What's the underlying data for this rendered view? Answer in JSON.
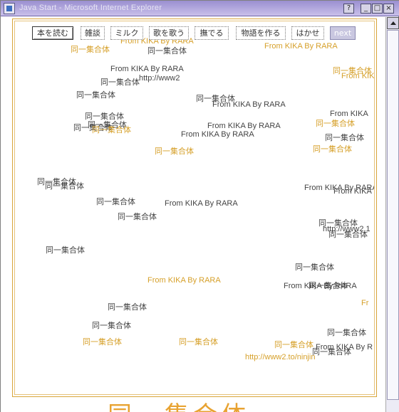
{
  "window": {
    "title": "Java Start - Microsoft Internet Explorer",
    "help_label": "?",
    "min_label": "_",
    "max_label": "□",
    "close_label": "×"
  },
  "toolbar": {
    "buttons": [
      "本を読む",
      "雑談",
      "ミルク",
      "歌を歌う",
      "撫でる",
      "物語を作る",
      "はかせ",
      "next"
    ]
  },
  "overlay": {
    "partial_top": "From KIKA By RARA",
    "heading": "同一集合体"
  },
  "floating_texts": [
    {
      "text": "From KIKA By RARA",
      "color": "orange"
    },
    {
      "text": "同一集合体",
      "color": "orange"
    },
    {
      "text": "同一集合体",
      "color": "dark"
    },
    {
      "text": "From KIKA By RARA",
      "color": "dark"
    },
    {
      "text": "同一集合体",
      "color": "dark"
    },
    {
      "text": "http://www2",
      "color": "dark"
    },
    {
      "text": "同一集合体",
      "color": "orange"
    },
    {
      "text": "同一集合体",
      "color": "dark"
    },
    {
      "text": "From KIKA",
      "color": "orange"
    },
    {
      "text": "同一集合体",
      "color": "dark"
    },
    {
      "text": "同一集合体",
      "color": "dark"
    },
    {
      "text": "From KIKA By RARA",
      "color": "dark"
    },
    {
      "text": "From KIKA",
      "color": "dark"
    },
    {
      "text": "同一集合体",
      "color": "dark"
    },
    {
      "text": "同一集合体",
      "color": "dark"
    },
    {
      "text": "From KIKA By RARA",
      "color": "dark"
    },
    {
      "text": "同一集合体",
      "color": "orange"
    },
    {
      "text": "同一集合体",
      "color": "orange"
    },
    {
      "text": "From KIKA By RARA",
      "color": "dark"
    },
    {
      "text": "同一集合体",
      "color": "dark"
    },
    {
      "text": "同一集合体",
      "color": "orange"
    },
    {
      "text": "同一集合体",
      "color": "orange"
    },
    {
      "text": "同一集合体",
      "color": "dark"
    },
    {
      "text": "同一集合体",
      "color": "dark"
    },
    {
      "text": "From KIKA By RARA",
      "color": "dark"
    },
    {
      "text": "From KIKA",
      "color": "dark"
    },
    {
      "text": "同一集合体",
      "color": "dark"
    },
    {
      "text": "From KIKA By RARA",
      "color": "dark"
    },
    {
      "text": "同一集合体",
      "color": "dark"
    },
    {
      "text": "同一集合体",
      "color": "dark"
    },
    {
      "text": "http://www2.1",
      "color": "dark"
    },
    {
      "text": "同一集合体",
      "color": "dark"
    },
    {
      "text": "同一集合体",
      "color": "dark"
    },
    {
      "text": "同一集合体",
      "color": "dark"
    },
    {
      "text": "From KIKA By RARA",
      "color": "orange"
    },
    {
      "text": "From KIKA By RARA",
      "color": "dark"
    },
    {
      "text": "同一集合体",
      "color": "dark"
    },
    {
      "text": "Fr",
      "color": "orange"
    },
    {
      "text": "同一集合体",
      "color": "dark"
    },
    {
      "text": "同一集合体",
      "color": "dark"
    },
    {
      "text": "同一集合体",
      "color": "orange"
    },
    {
      "text": "同一集合体",
      "color": "orange"
    },
    {
      "text": "同一集合体",
      "color": "dark"
    },
    {
      "text": "同一集合体",
      "color": "orange"
    },
    {
      "text": "From KIKA By R",
      "color": "dark"
    },
    {
      "text": "http://www2.to/ninjin",
      "color": "orange"
    },
    {
      "text": "同一集合体",
      "color": "dark"
    }
  ]
}
